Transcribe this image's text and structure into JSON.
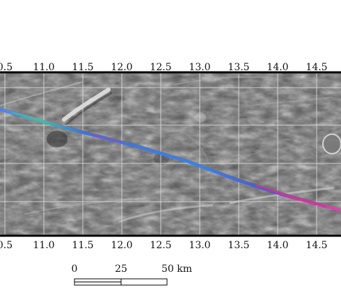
{
  "map": {
    "x_ticks": [
      "0.5",
      "11.0",
      "11.5",
      "12.0",
      "12.5",
      "13.0",
      "13.5",
      "14.0",
      "14.5"
    ],
    "colors": {
      "terrain_base": "#5f5f5f",
      "gridline": "#d9d9d9",
      "frame": "#000000",
      "track_blue": "#3f6fd8",
      "track_teal": "#4bb7a9",
      "track_magenta": "#c23b9a"
    }
  },
  "scale_bar": {
    "labels": [
      "0",
      "25",
      "50 km"
    ]
  }
}
